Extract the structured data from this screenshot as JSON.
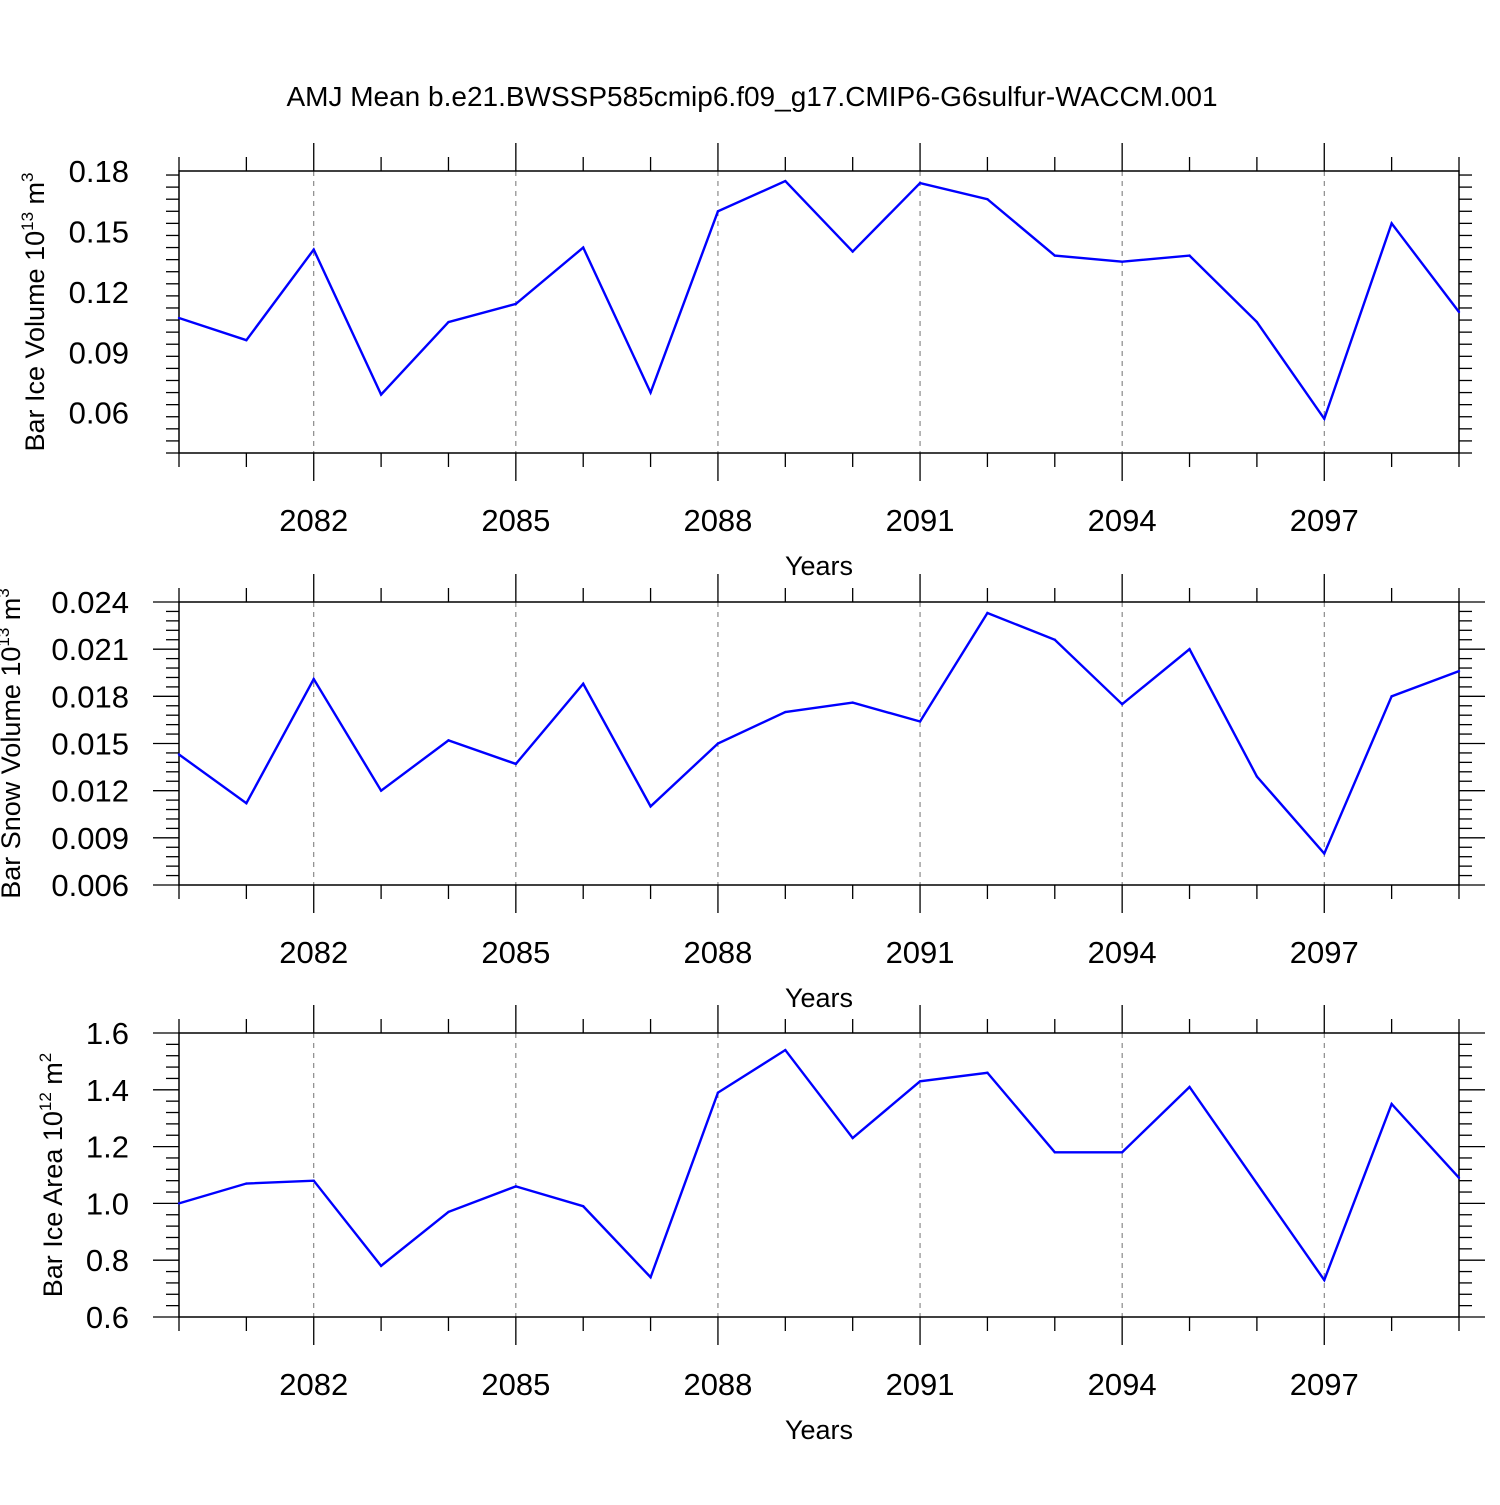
{
  "title": "AMJ Mean b.e21.BWSSP585cmip6.f09_g17.CMIP6-G6sulfur-WACCM.001",
  "colors": {
    "line": "#0000ff",
    "axis": "#000000",
    "grid": "#000000"
  },
  "chart_data": [
    {
      "type": "line",
      "title": "AMJ Mean b.e21.BWSSP585cmip6.f09_g17.CMIP6-G6sulfur-WACCM.001",
      "ylabel": "Bar Ice Volume",
      "yunit_base": "10",
      "yunit_exp": "13",
      "yunit_suffix": "m",
      "yunit_suffix_exp": "3",
      "xlabel": "Years",
      "xlim": [
        2080,
        2099
      ],
      "ylim": [
        0.04,
        0.18
      ],
      "yticks": [
        0.06,
        0.09,
        0.12,
        0.15,
        0.18
      ],
      "ytick_labels": [
        "0.06",
        "0.09",
        "0.12",
        "0.15",
        "0.18"
      ],
      "xticks": [
        2082,
        2085,
        2088,
        2091,
        2094,
        2097
      ],
      "xtick_labels": [
        "2082",
        "2085",
        "2088",
        "2091",
        "2094",
        "2097"
      ],
      "grid": "dashed vertical at major x ticks",
      "x": [
        2080,
        2081,
        2082,
        2083,
        2084,
        2085,
        2086,
        2087,
        2088,
        2089,
        2090,
        2091,
        2092,
        2093,
        2094,
        2095,
        2096,
        2097,
        2098,
        2099
      ],
      "values": [
        0.107,
        0.096,
        0.141,
        0.069,
        0.105,
        0.114,
        0.142,
        0.07,
        0.16,
        0.175,
        0.14,
        0.174,
        0.166,
        0.138,
        0.135,
        0.138,
        0.105,
        0.057,
        0.154,
        0.11
      ]
    },
    {
      "type": "line",
      "ylabel": "Bar Snow Volume",
      "yunit_base": "10",
      "yunit_exp": "13",
      "yunit_suffix": "m",
      "yunit_suffix_exp": "3",
      "xlabel": "Years",
      "xlim": [
        2080,
        2099
      ],
      "ylim": [
        0.006,
        0.024
      ],
      "yticks": [
        0.006,
        0.009,
        0.012,
        0.015,
        0.018,
        0.021,
        0.024
      ],
      "ytick_labels": [
        "0.006",
        "0.009",
        "0.012",
        "0.015",
        "0.018",
        "0.021",
        "0.024"
      ],
      "xticks": [
        2082,
        2085,
        2088,
        2091,
        2094,
        2097
      ],
      "xtick_labels": [
        "2082",
        "2085",
        "2088",
        "2091",
        "2094",
        "2097"
      ],
      "grid": "dashed vertical at major x ticks",
      "x": [
        2080,
        2081,
        2082,
        2083,
        2084,
        2085,
        2086,
        2087,
        2088,
        2089,
        2090,
        2091,
        2092,
        2093,
        2094,
        2095,
        2096,
        2097,
        2098,
        2099
      ],
      "values": [
        0.0143,
        0.0112,
        0.0191,
        0.012,
        0.0152,
        0.0137,
        0.0188,
        0.011,
        0.015,
        0.017,
        0.0176,
        0.0164,
        0.0233,
        0.0216,
        0.0175,
        0.021,
        0.0129,
        0.008,
        0.018,
        0.0196
      ]
    },
    {
      "type": "line",
      "ylabel": "Bar Ice Area",
      "yunit_base": "10",
      "yunit_exp": "12",
      "yunit_suffix": "m",
      "yunit_suffix_exp": "2",
      "xlabel": "Years",
      "xlim": [
        2080,
        2099
      ],
      "ylim": [
        0.6,
        1.6
      ],
      "yticks": [
        0.6,
        0.8,
        1.0,
        1.2,
        1.4,
        1.6
      ],
      "ytick_labels": [
        "0.6",
        "0.8",
        "1.0",
        "1.2",
        "1.4",
        "1.6"
      ],
      "xticks": [
        2082,
        2085,
        2088,
        2091,
        2094,
        2097
      ],
      "xtick_labels": [
        "2082",
        "2085",
        "2088",
        "2091",
        "2094",
        "2097"
      ],
      "grid": "dashed vertical at major x ticks",
      "x": [
        2080,
        2081,
        2082,
        2083,
        2084,
        2085,
        2086,
        2087,
        2088,
        2089,
        2090,
        2091,
        2092,
        2093,
        2094,
        2095,
        2096,
        2097,
        2098,
        2099
      ],
      "values": [
        1.0,
        1.07,
        1.08,
        0.78,
        0.97,
        1.06,
        0.99,
        0.74,
        1.39,
        1.54,
        1.23,
        1.43,
        1.46,
        1.18,
        1.18,
        1.41,
        1.07,
        0.73,
        1.35,
        1.09
      ]
    }
  ]
}
